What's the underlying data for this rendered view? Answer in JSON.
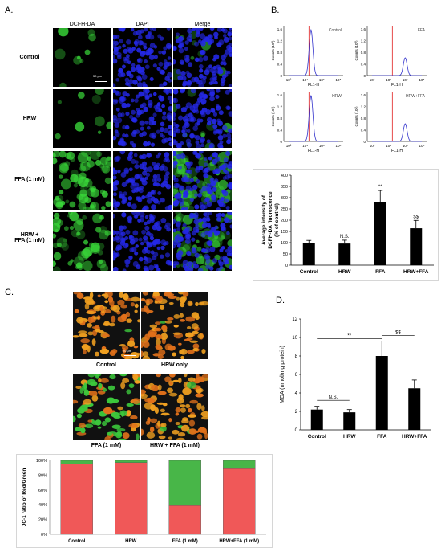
{
  "panels": {
    "a": "A.",
    "b": "B.",
    "c": "C.",
    "d": "D."
  },
  "panel_a": {
    "columns": [
      "DCFH-DA",
      "DAPI",
      "Merge"
    ],
    "rows": [
      "Control",
      "HRW",
      "FFA (1 mM)",
      "HRW +",
      "FFA (1 mM)"
    ],
    "green_levels": [
      0.08,
      0.08,
      0.95,
      0.7
    ],
    "scale_bar": "50 μm",
    "colors": {
      "green": "#39d639",
      "blue": "#2428e6"
    }
  },
  "panel_b_hist": {
    "ylabel": "Counts (10³)",
    "xlabel": "FL1-H",
    "yticks": [
      "0",
      "0.4",
      "0.8",
      "1.2",
      "1.6"
    ],
    "xticks": [
      "10²",
      "10⁴",
      "10⁶",
      "10⁸"
    ],
    "titles": [
      "Control",
      "FFA",
      "HRW",
      "HRW+FFA"
    ],
    "peak_decades": [
      4.7,
      6.0,
      4.7,
      6.0
    ],
    "colors": {
      "curve": "#3333cc",
      "marker": "#e02020"
    }
  },
  "panel_b_bar": {
    "chart_data": {
      "type": "bar",
      "categories": [
        "Control",
        "HRW",
        "FFA",
        "HRW+FFA"
      ],
      "values": [
        100,
        96,
        282,
        164
      ],
      "errors": [
        10,
        15,
        50,
        35
      ],
      "annotations": [
        "",
        "N.S.",
        "**",
        "$$"
      ],
      "ylabel_line1": "Average intensity of",
      "ylabel_line2": "DCFH-DA fluorescence",
      "ylabel_line3": "(% of control)",
      "yticks": [
        "0",
        "50",
        "100",
        "150",
        "200",
        "250",
        "300",
        "350",
        "400"
      ],
      "ylim": [
        0,
        400
      ]
    }
  },
  "panel_c": {
    "labels": [
      "Control",
      "HRW only",
      "FFA (1 mM)",
      "HRW + FFA (1 mM)"
    ],
    "scale_bar": "20 μm"
  },
  "panel_c_bar": {
    "chart_data": {
      "type": "bar",
      "stacked": true,
      "categories": [
        "Control",
        "HRW",
        "FFA (1 mM)",
        "HRW+FFA (1 mM)"
      ],
      "series": [
        {
          "name": "Red",
          "values": [
            95,
            97,
            39,
            89
          ],
          "color": "#f05858"
        },
        {
          "name": "Green",
          "values": [
            5,
            3,
            61,
            11
          ],
          "color": "#48b648"
        }
      ],
      "ylabel": "JC-1 ratio of Red/Green",
      "yticks": [
        "0%",
        "20%",
        "40%",
        "60%",
        "80%",
        "100%"
      ],
      "ylim": [
        0,
        100
      ]
    }
  },
  "panel_d": {
    "chart_data": {
      "type": "bar",
      "categories": [
        "Control",
        "HRW",
        "FFA",
        "HRW+FFA"
      ],
      "values": [
        2.2,
        1.9,
        8.0,
        4.5
      ],
      "errors": [
        0.35,
        0.3,
        1.6,
        0.9
      ],
      "ylabel": "MDA (nmol/mg protein)",
      "yticks": [
        "0",
        "2",
        "4",
        "6",
        "8",
        "10",
        "12"
      ],
      "ylim": [
        0,
        12
      ],
      "brackets": [
        {
          "from": 0,
          "to": 1,
          "y": 3.2,
          "label": "N.S."
        },
        {
          "from": 0,
          "to": 2,
          "y": 10.2,
          "label": "**"
        },
        {
          "from": 2,
          "to": 3,
          "y": 10.2,
          "label": "$$"
        }
      ]
    }
  }
}
